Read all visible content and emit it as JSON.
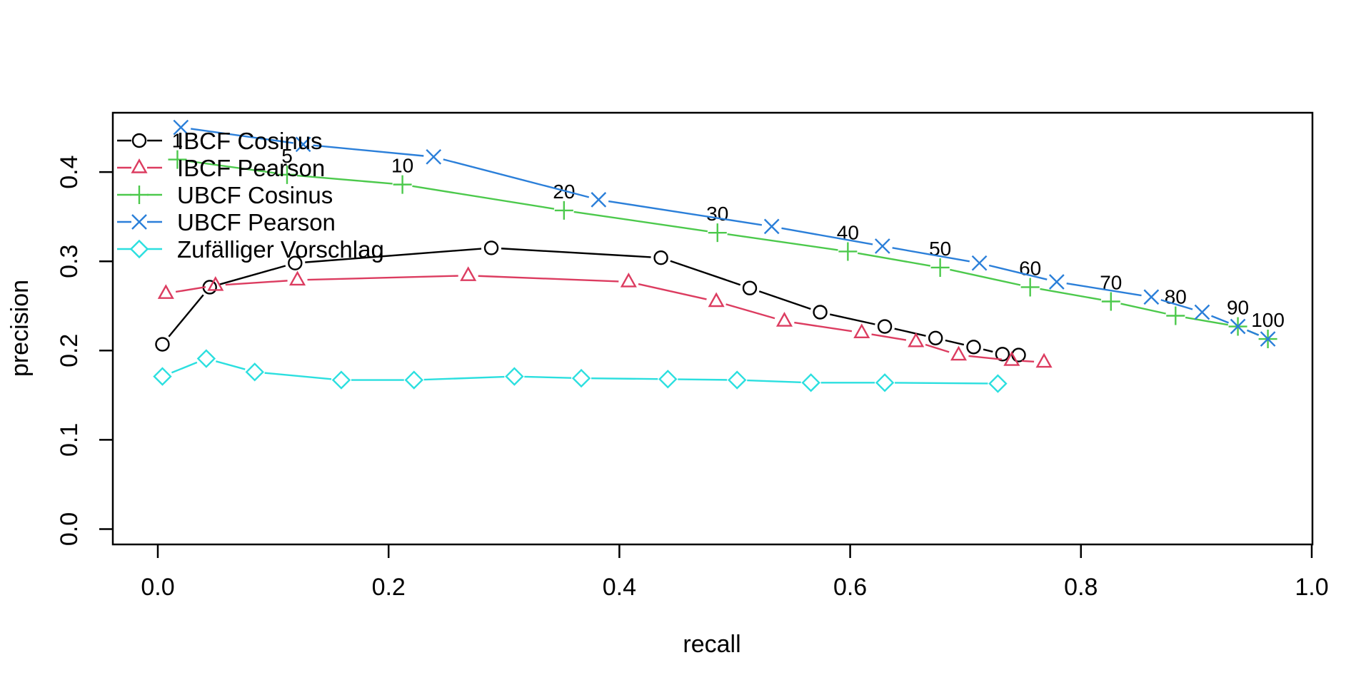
{
  "chart_data": {
    "type": "line",
    "title": "",
    "xlabel": "recall",
    "ylabel": "precision",
    "xlim": [
      0,
      1.0
    ],
    "ylim": [
      0,
      0.46
    ],
    "grid": false,
    "legend_position": "top-left",
    "x_ticks": {
      "values": [
        0,
        0.2,
        0.4,
        0.6,
        0.8,
        1.0
      ],
      "labels": [
        "0.0",
        "0.2",
        "0.4",
        "0.6",
        "0.8",
        "1.0"
      ]
    },
    "y_ticks": {
      "values": [
        0,
        0.1,
        0.2,
        0.3,
        0.4
      ],
      "labels": [
        "0.0",
        "0.1",
        "0.2",
        "0.3",
        "0.4"
      ]
    },
    "point_label_values": [
      "1",
      "5",
      "10",
      "20",
      "30",
      "40",
      "50",
      "60",
      "70",
      "80",
      "90",
      "100"
    ],
    "labeled_series": "UBCF Cosinus",
    "series": [
      {
        "name": "IBCF Cosinus",
        "color": "#000000",
        "marker": "circle",
        "points": [
          [
            0.004,
            0.207
          ],
          [
            0.045,
            0.271
          ],
          [
            0.119,
            0.298
          ],
          [
            0.289,
            0.315
          ],
          [
            0.436,
            0.304
          ],
          [
            0.513,
            0.27
          ],
          [
            0.574,
            0.243
          ],
          [
            0.63,
            0.227
          ],
          [
            0.674,
            0.214
          ],
          [
            0.707,
            0.204
          ],
          [
            0.732,
            0.196
          ],
          [
            0.746,
            0.195
          ]
        ]
      },
      {
        "name": "IBCF Pearson",
        "color": "#DC3C60",
        "marker": "triangle",
        "points": [
          [
            0.007,
            0.264
          ],
          [
            0.05,
            0.273
          ],
          [
            0.121,
            0.279
          ],
          [
            0.269,
            0.284
          ],
          [
            0.408,
            0.277
          ],
          [
            0.484,
            0.255
          ],
          [
            0.543,
            0.233
          ],
          [
            0.61,
            0.22
          ],
          [
            0.657,
            0.21
          ],
          [
            0.694,
            0.195
          ],
          [
            0.74,
            0.189
          ],
          [
            0.768,
            0.187
          ]
        ]
      },
      {
        "name": "UBCF Cosinus",
        "color": "#4CC94C",
        "marker": "plus",
        "has_point_labels": true,
        "points": [
          [
            0.017,
            0.414
          ],
          [
            0.112,
            0.397
          ],
          [
            0.212,
            0.386
          ],
          [
            0.352,
            0.357
          ],
          [
            0.485,
            0.332
          ],
          [
            0.598,
            0.311
          ],
          [
            0.678,
            0.293
          ],
          [
            0.756,
            0.271
          ],
          [
            0.826,
            0.255
          ],
          [
            0.882,
            0.239
          ],
          [
            0.936,
            0.227
          ],
          [
            0.962,
            0.213
          ]
        ]
      },
      {
        "name": "UBCF Pearson",
        "color": "#2B7FD9",
        "marker": "x",
        "points": [
          [
            0.02,
            0.45
          ],
          [
            0.126,
            0.431
          ],
          [
            0.239,
            0.417
          ],
          [
            0.382,
            0.369
          ],
          [
            0.532,
            0.339
          ],
          [
            0.628,
            0.317
          ],
          [
            0.712,
            0.298
          ],
          [
            0.779,
            0.277
          ],
          [
            0.861,
            0.26
          ],
          [
            0.905,
            0.243
          ],
          [
            0.936,
            0.227
          ],
          [
            0.962,
            0.213
          ]
        ]
      },
      {
        "name": "Zufälliger Vorschlag",
        "color": "#2BDFDF",
        "marker": "diamond",
        "points": [
          [
            0.004,
            0.171
          ],
          [
            0.042,
            0.191
          ],
          [
            0.084,
            0.176
          ],
          [
            0.159,
            0.167
          ],
          [
            0.222,
            0.167
          ],
          [
            0.309,
            0.171
          ],
          [
            0.367,
            0.169
          ],
          [
            0.442,
            0.168
          ],
          [
            0.502,
            0.167
          ],
          [
            0.566,
            0.164
          ],
          [
            0.63,
            0.164
          ],
          [
            0.728,
            0.163
          ]
        ]
      }
    ]
  }
}
